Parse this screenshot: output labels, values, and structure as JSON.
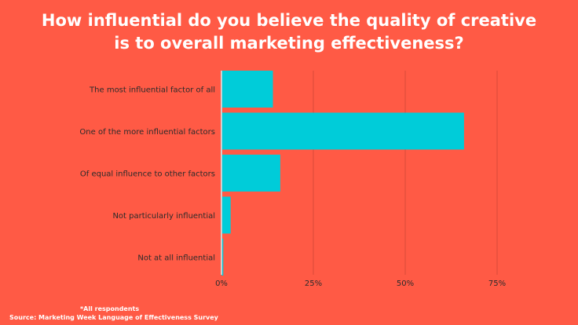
{
  "chart_data": {
    "type": "bar",
    "orientation": "horizontal",
    "title_lines": [
      "How influential do you believe the quality of creative",
      "is to overall marketing effectiveness?"
    ],
    "categories": [
      "The most influential factor of all",
      "One of the more influential factors",
      "Of equal influence to other factors",
      "Not particularly influential",
      "Not at all influential"
    ],
    "values": [
      14,
      66,
      16,
      2.5,
      0.5
    ],
    "x_ticks": [
      "0%",
      "25%",
      "50%",
      "75%"
    ],
    "xlim": [
      0,
      75
    ],
    "xlabel": "",
    "ylabel": "",
    "grid": "vertical",
    "legend": "none"
  },
  "footnote": {
    "note": "*All respondents",
    "source": "Source: Marketing Week Language of Effectiveness Survey"
  },
  "colors": {
    "background": "#FF5A45",
    "bar": "#00CCD9",
    "text": "#ffffff",
    "label": "#2b2b2b"
  }
}
